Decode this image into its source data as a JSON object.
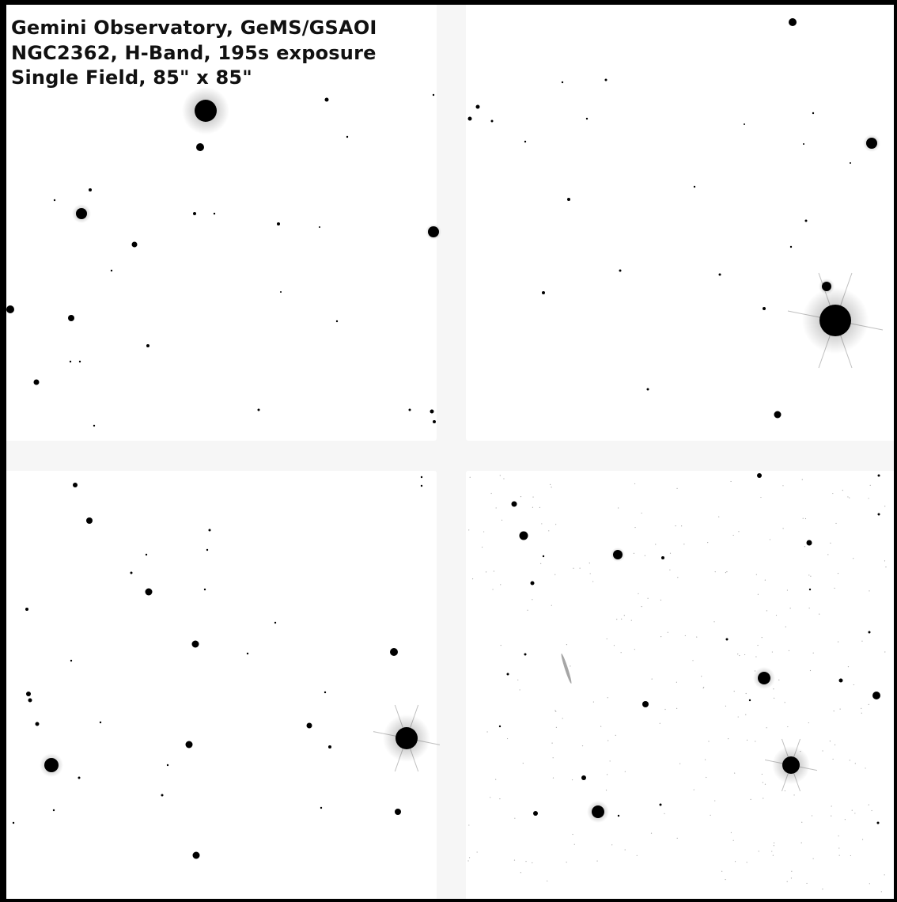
{
  "caption": {
    "line1": "Gemini Observatory, GeMS/GSAOI",
    "line2": "NGC2362, H-Band, 195s exposure",
    "line3": "Single Field, 85\" x 85\""
  },
  "colors": {
    "background": "#ffffff",
    "chip_gap": "#f6f6f6",
    "frame": "#000000",
    "stars": "#000000"
  }
}
